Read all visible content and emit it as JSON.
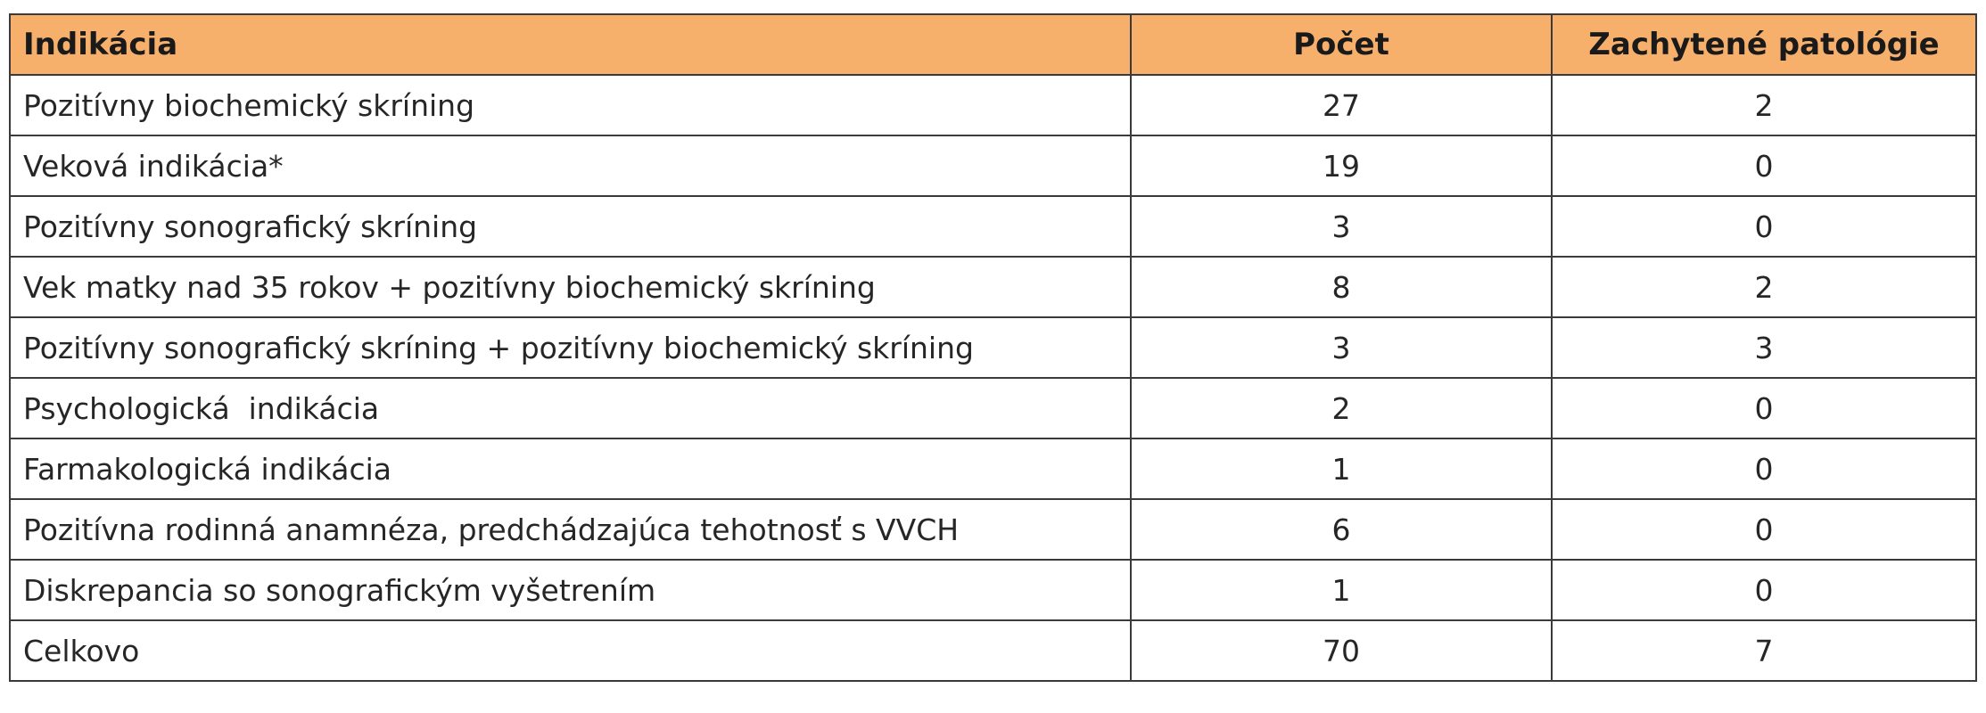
{
  "table": {
    "headers": [
      "Indikácia",
      "Počet",
      "Zachytené patológie"
    ],
    "rows": [
      [
        "Pozitívny biochemický skríning",
        "27",
        "2"
      ],
      [
        "Veková indikácia*",
        "19",
        "0"
      ],
      [
        "Pozitívny sonografický skríning",
        "3",
        "0"
      ],
      [
        "Vek matky nad 35 rokov + pozitívny biochemický skríning",
        "8",
        "2"
      ],
      [
        "Pozitívny sonografický skríning + pozitívny biochemický skríning",
        "3",
        "3"
      ],
      [
        "Psychologická  indikácia",
        "2",
        "0"
      ],
      [
        "Farmakologická indikácia",
        "1",
        "0"
      ],
      [
        "Pozitívna rodinná anamnéza, predchádzajúca tehotnosť s VVCH",
        "6",
        "0"
      ],
      [
        "Diskrepancia so sonografickým vyšetrením",
        "1",
        "0"
      ],
      [
        "Celkovo",
        "70",
        "7"
      ]
    ],
    "header_color": "#f7b06b"
  }
}
